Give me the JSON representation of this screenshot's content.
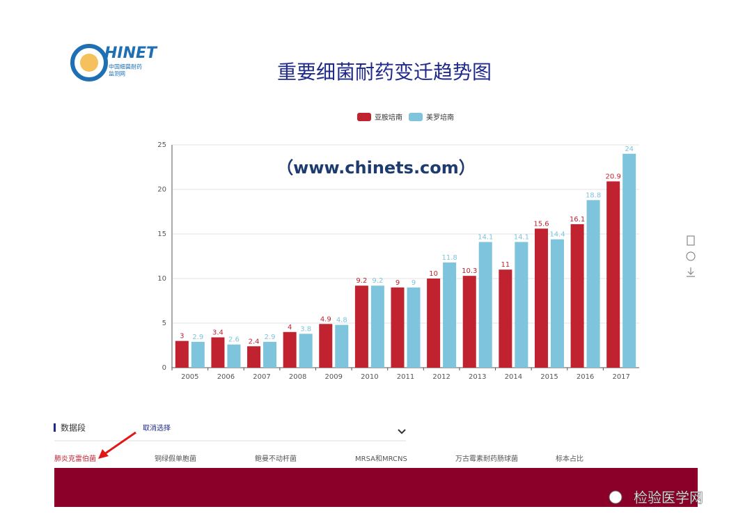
{
  "chart_data": {
    "type": "bar",
    "title": "重要细菌耐药变迁趋势图",
    "annotation": "（www.chinets.com）",
    "categories": [
      "2005",
      "2006",
      "2007",
      "2008",
      "2009",
      "2010",
      "2011",
      "2012",
      "2013",
      "2014",
      "2015",
      "2016",
      "2017"
    ],
    "series": [
      {
        "name": "亚胺培南",
        "color": "#c0222f",
        "values": [
          3,
          3.4,
          2.4,
          4,
          4.9,
          9.2,
          9,
          10,
          10.3,
          11,
          15.6,
          16.1,
          20.9
        ]
      },
      {
        "name": "美罗培南",
        "color": "#7ec4dc",
        "values": [
          2.9,
          2.6,
          2.9,
          3.8,
          4.8,
          9.2,
          9,
          11.8,
          14.1,
          14.1,
          14.4,
          18.8,
          24
        ]
      }
    ],
    "ylim": [
      0,
      25
    ],
    "yticks": [
      0,
      5,
      10,
      15,
      20,
      25
    ],
    "grid": true,
    "legend": "top"
  },
  "page": {
    "logo": {
      "name": "HINET",
      "line1": "中国细菌耐药",
      "line2": "监测网"
    },
    "section_label": "数据段",
    "clear": "取消选择",
    "tabs": [
      "肺炎克雷伯菌",
      "铜绿假单胞菌",
      "鲍曼不动杆菌",
      "MRSA和MRCNS",
      "万古霉素耐药肠球菌",
      "标本占比"
    ],
    "watermark": "检验医学网"
  }
}
